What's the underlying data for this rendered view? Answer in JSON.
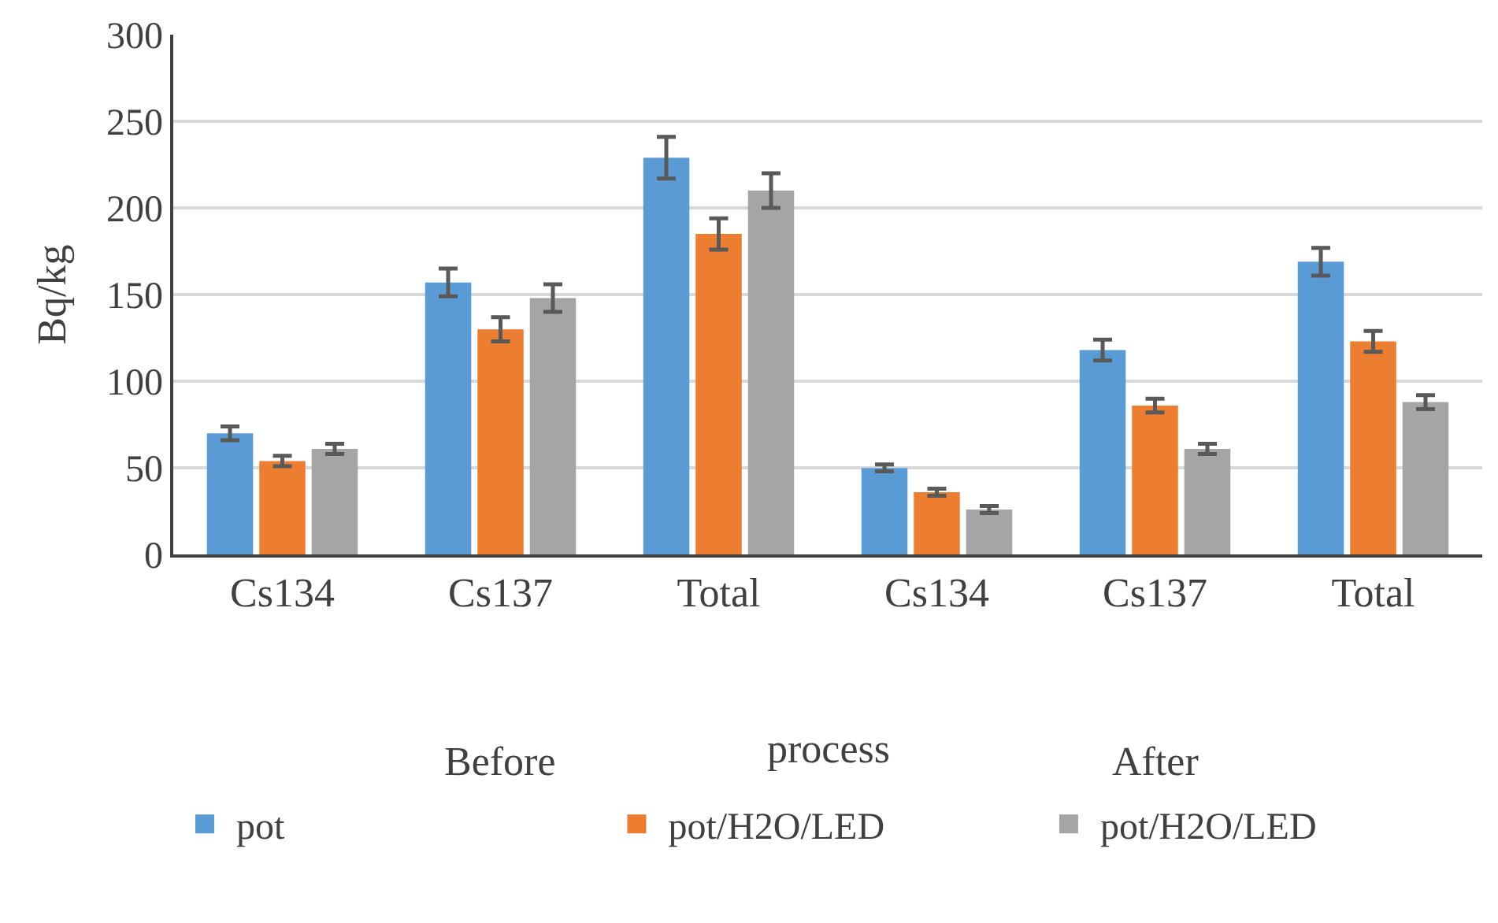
{
  "chart_data": {
    "type": "bar",
    "ylabel": "Bq/kg",
    "xlabel": "process",
    "categories": [
      "Cs134",
      "Cs137",
      "Total",
      "Cs134",
      "Cs137",
      "Total"
    ],
    "series": [
      {
        "name": "pot",
        "color": "#5b9bd5",
        "values": [
          70,
          157,
          229,
          50,
          118,
          169
        ],
        "errors": [
          4,
          8,
          12,
          2,
          6,
          8
        ]
      },
      {
        "name": "pot/H2O/LED",
        "color": "#ed7d31",
        "values": [
          54,
          130,
          185,
          36,
          86,
          123
        ],
        "errors": [
          3,
          7,
          9,
          2,
          4,
          6
        ]
      },
      {
        "name": "pot/H2O/LED",
        "color": "#a5a5a5",
        "values": [
          61,
          148,
          210,
          26,
          61,
          88
        ],
        "errors": [
          3,
          8,
          10,
          2,
          3,
          4
        ]
      }
    ],
    "annotations": [
      "Before",
      "After"
    ],
    "ylim": [
      0,
      300
    ],
    "yticks": [
      0,
      50,
      100,
      150,
      200,
      250,
      300
    ],
    "grid": "y",
    "legend": "bottom"
  }
}
